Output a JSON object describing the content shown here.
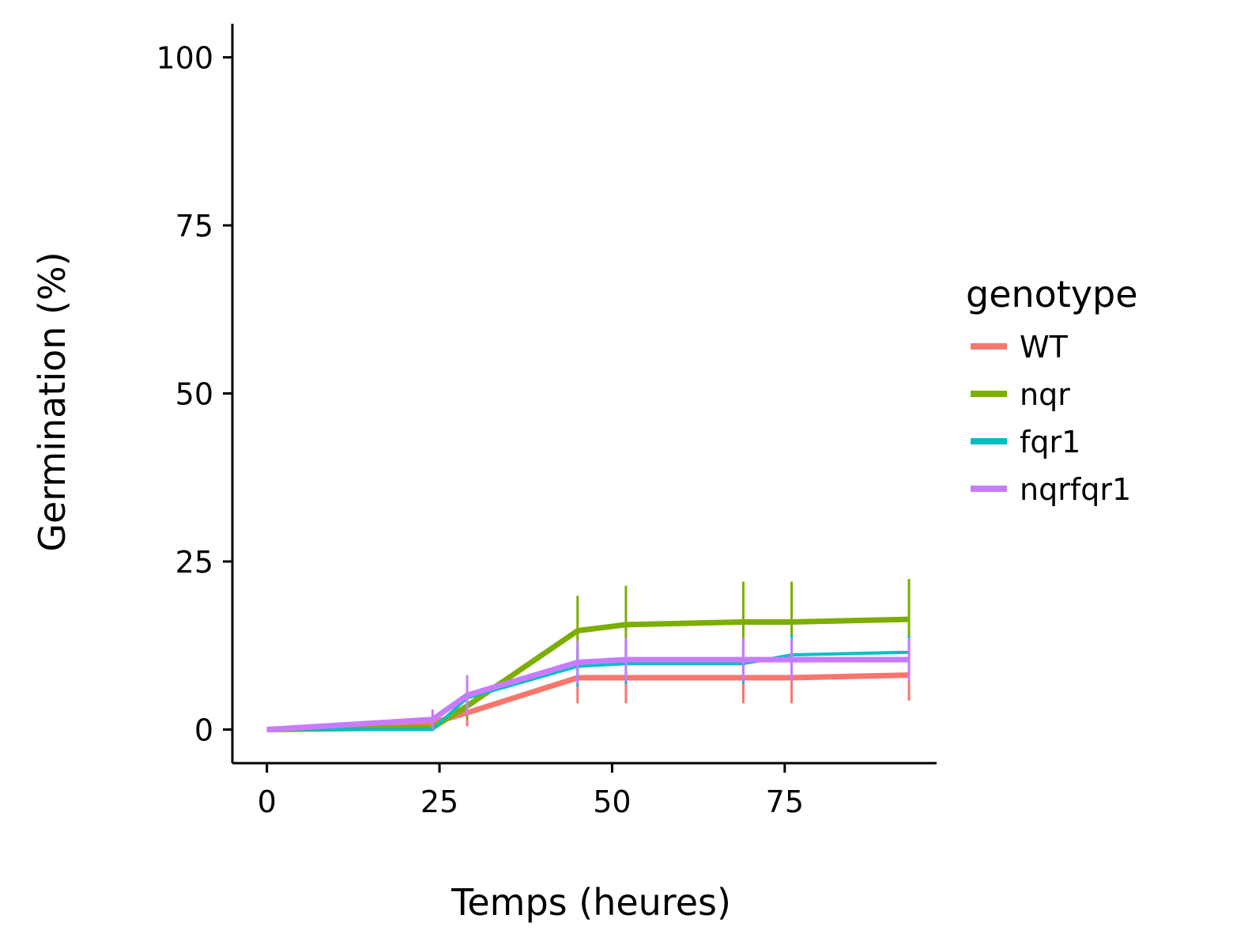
{
  "chart_data": {
    "type": "line",
    "xlabel": "Temps (heures)",
    "ylabel": "Germination (%)",
    "xlim": [
      -5,
      97
    ],
    "ylim": [
      -5,
      105
    ],
    "xticks": [
      0,
      25,
      50,
      75
    ],
    "yticks": [
      0,
      25,
      50,
      75,
      100
    ],
    "legend": {
      "title": "genotype",
      "position": "right"
    },
    "x": [
      0,
      24,
      29,
      45,
      52,
      69,
      76,
      93
    ],
    "series": [
      {
        "name": "WT",
        "color": "#F8766D",
        "values": [
          0,
          1,
          2.5,
          7.7,
          7.7,
          7.7,
          7.7,
          8.1
        ],
        "error": [
          0,
          0.5,
          2,
          3.8,
          3.8,
          3.8,
          3.8,
          3.8
        ]
      },
      {
        "name": "nqr",
        "color": "#7CAE00",
        "values": [
          0,
          0.3,
          3.5,
          14.7,
          15.6,
          16.0,
          16.0,
          16.4
        ],
        "error": [
          0,
          0.5,
          2,
          5.2,
          5.8,
          6.0,
          6.0,
          6.0
        ]
      },
      {
        "name": "fqr1",
        "color": "#00BFC4",
        "values": [
          0,
          0,
          4.7,
          9.4,
          9.8,
          9.8,
          11.1,
          11.5
        ],
        "error": [
          0,
          0,
          2,
          3,
          3,
          3,
          3,
          2.5
        ]
      },
      {
        "name": "nqrfqr1",
        "color": "#C77CFF",
        "values": [
          0,
          1.5,
          5.1,
          10.0,
          10.4,
          10.4,
          10.4,
          10.4
        ],
        "error": [
          0,
          1.5,
          3,
          3.2,
          3.2,
          3.2,
          3.2,
          3.2
        ]
      }
    ]
  }
}
